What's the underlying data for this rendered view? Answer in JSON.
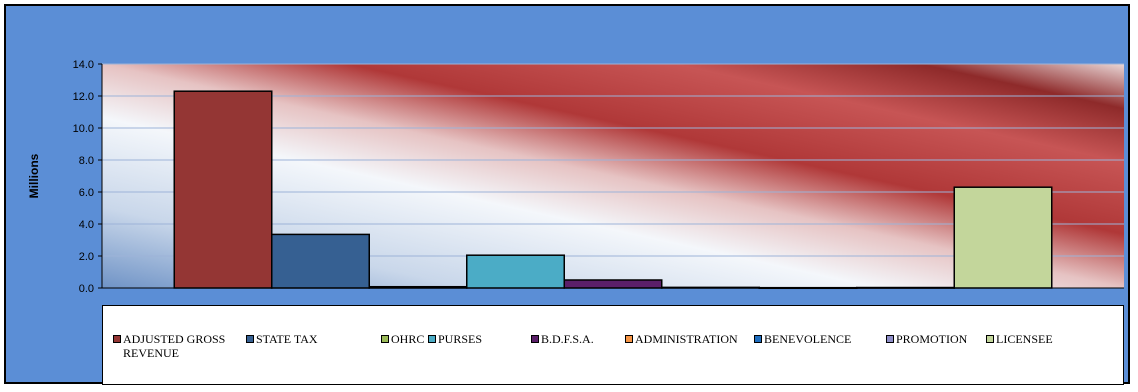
{
  "chart_data": {
    "type": "bar",
    "title": "",
    "xlabel": "",
    "ylabel": "Millions",
    "ylim": [
      0,
      14
    ],
    "yticks": [
      "0.0",
      "2.0",
      "4.0",
      "6.0",
      "8.0",
      "10.0",
      "12.0",
      "14.0"
    ],
    "grid": true,
    "legend_position": "bottom",
    "series": [
      {
        "name": "ADJUSTED GROSS REVENUE",
        "values": [
          12.3
        ],
        "color": "#943634"
      },
      {
        "name": "STATE TAX",
        "values": [
          3.35
        ],
        "color": "#366092"
      },
      {
        "name": "OHRC",
        "values": [
          0.08
        ],
        "color": "#9bbb59"
      },
      {
        "name": "PURSES",
        "values": [
          2.05
        ],
        "color": "#4bacc6"
      },
      {
        "name": "B.D.F.S.A.",
        "values": [
          0.5
        ],
        "color": "#5b1f69"
      },
      {
        "name": "ADMINISTRATION",
        "values": [
          0.04
        ],
        "color": "#f79646"
      },
      {
        "name": "BENEVOLENCE",
        "values": [
          0.02
        ],
        "color": "#1f6ebf"
      },
      {
        "name": "PROMOTION",
        "values": [
          0.03
        ],
        "color": "#8e8ec8"
      },
      {
        "name": "LICENSEE",
        "values": [
          6.3
        ],
        "color": "#c3d69b"
      }
    ]
  }
}
